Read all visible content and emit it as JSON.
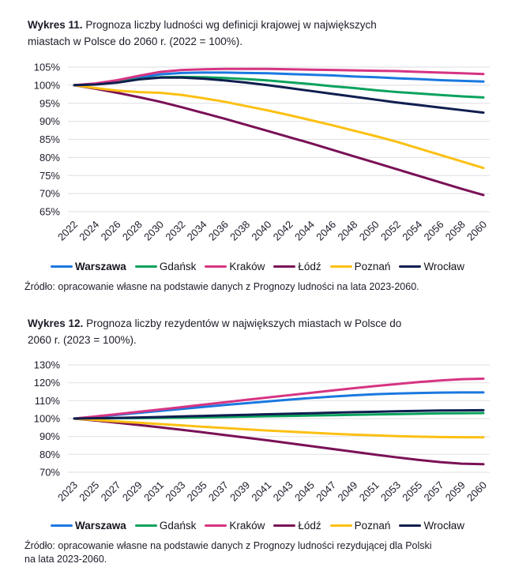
{
  "theme": {
    "background": "#ffffff",
    "text": "#1c1c2b",
    "grid": "#e4e4e7",
    "title_color": "#1b1b28"
  },
  "figures": [
    {
      "title_label": "Wykres 11.",
      "title_text": " Prognoza liczby ludności wg definicji krajowej w największych\nmiastach w Polsce do 2060 r. (2022 = 100%).",
      "source": "Źródło: opracowanie własne na podstawie danych z Prognozy ludności na lata 2023-2060."
    },
    {
      "title_label": "Wykres 12.",
      "title_text": " Prognoza liczby rezydentów w największych miastach w Polsce do\n2060 r. (2023 = 100%).",
      "source": "Źródło: opracowanie własne na podstawie danych z Prognozy ludności rezydującej dla Polski\nna lata 2023-2060."
    }
  ],
  "chart_data": [
    {
      "type": "line",
      "title": "Wykres 11. Prognoza liczby ludności wg definicji krajowej w największych miastach w Polsce do 2060 r. (2022 = 100%).",
      "xlabel": "",
      "ylabel": "",
      "x": [
        2022,
        2024,
        2026,
        2028,
        2030,
        2032,
        2034,
        2036,
        2038,
        2040,
        2042,
        2044,
        2046,
        2048,
        2050,
        2052,
        2054,
        2056,
        2058,
        2060
      ],
      "ylim": [
        65,
        105
      ],
      "yticks": [
        105,
        100,
        95,
        90,
        85,
        80,
        75,
        70,
        65
      ],
      "ytick_suffix": "%",
      "grid": "horizontal",
      "legend_position": "bottom",
      "series": [
        {
          "name": "Warszawa",
          "color": "#1a78e0",
          "emphasis": true,
          "values": [
            100,
            100.4,
            101.1,
            102.1,
            103,
            103.4,
            103.5,
            103.5,
            103.4,
            103.3,
            103.1,
            102.9,
            102.7,
            102.4,
            102.2,
            101.9,
            101.7,
            101.4,
            101.2,
            101
          ]
        },
        {
          "name": "Gdańsk",
          "color": "#0aa25d",
          "values": [
            100,
            100.3,
            100.9,
            101.7,
            102.2,
            102.3,
            102.2,
            102,
            101.7,
            101.3,
            100.8,
            100.3,
            99.7,
            99.2,
            98.6,
            98.1,
            97.7,
            97.3,
            96.9,
            96.6
          ]
        },
        {
          "name": "Kraków",
          "color": "#d63483",
          "values": [
            100,
            100.5,
            101.4,
            102.6,
            103.7,
            104.2,
            104.4,
            104.5,
            104.5,
            104.5,
            104.4,
            104.3,
            104.2,
            104.1,
            104,
            103.9,
            103.7,
            103.5,
            103.3,
            103.1
          ]
        },
        {
          "name": "Łódź",
          "color": "#7a1156",
          "values": [
            100,
            99,
            97.9,
            96.7,
            95.4,
            93.9,
            92.3,
            90.7,
            89,
            87.3,
            85.6,
            83.9,
            82.1,
            80.3,
            78.5,
            76.7,
            74.9,
            73.1,
            71.3,
            69.6
          ]
        },
        {
          "name": "Poznań",
          "color": "#fcc013",
          "values": [
            100,
            99.2,
            98.5,
            98.1,
            97.9,
            97.3,
            96.4,
            95.4,
            94.2,
            93,
            91.7,
            90.3,
            88.9,
            87.4,
            85.9,
            84.3,
            82.5,
            80.7,
            78.9,
            77.1
          ]
        },
        {
          "name": "Wrocław",
          "color": "#0f1e4f",
          "values": [
            100,
            100.2,
            100.7,
            101.6,
            102.1,
            102.1,
            101.8,
            101.3,
            100.7,
            100,
            99.2,
            98.4,
            97.6,
            96.8,
            96,
            95.2,
            94.5,
            93.8,
            93.1,
            92.4
          ]
        }
      ]
    },
    {
      "type": "line",
      "title": "Wykres 12. Prognoza liczby rezydentów w największych miastach w Polsce do 2060 r. (2023 = 100%).",
      "xlabel": "",
      "ylabel": "",
      "x": [
        2023,
        2025,
        2027,
        2029,
        2031,
        2033,
        2035,
        2037,
        2039,
        2041,
        2043,
        2045,
        2047,
        2049,
        2051,
        2053,
        2055,
        2057,
        2059,
        2060
      ],
      "ylim": [
        70,
        130
      ],
      "yticks": [
        130,
        120,
        110,
        100,
        90,
        80,
        70
      ],
      "ytick_suffix": "%",
      "grid": "horizontal",
      "legend_position": "bottom",
      "series": [
        {
          "name": "Warszawa",
          "color": "#1a78e0",
          "emphasis": true,
          "values": [
            100,
            101,
            102.1,
            103.2,
            104.3,
            105.4,
            106.5,
            107.6,
            108.6,
            109.6,
            110.6,
            111.5,
            112.3,
            113,
            113.6,
            114,
            114.3,
            114.5,
            114.6,
            114.6
          ]
        },
        {
          "name": "Gdańsk",
          "color": "#0aa25d",
          "values": [
            100,
            100.1,
            100.2,
            100.3,
            100.4,
            100.5,
            100.7,
            100.9,
            101.1,
            101.3,
            101.5,
            101.7,
            101.9,
            102.1,
            102.3,
            102.5,
            102.7,
            102.9,
            103,
            103.1
          ]
        },
        {
          "name": "Kraków",
          "color": "#d63483",
          "values": [
            100,
            101.2,
            102.5,
            103.8,
            105.1,
            106.4,
            107.8,
            109.1,
            110.5,
            111.8,
            113.1,
            114.4,
            115.7,
            117,
            118.2,
            119.3,
            120.4,
            121.3,
            122,
            122.3
          ]
        },
        {
          "name": "Łódź",
          "color": "#7a1156",
          "values": [
            100,
            98.9,
            97.7,
            96.4,
            95.1,
            93.7,
            92.3,
            90.8,
            89.3,
            87.8,
            86.2,
            84.6,
            83,
            81.4,
            79.8,
            78.3,
            76.9,
            75.7,
            74.8,
            74.5
          ]
        },
        {
          "name": "Poznań",
          "color": "#fcc013",
          "values": [
            100,
            99.2,
            98.4,
            97.7,
            96.9,
            96.2,
            95.4,
            94.7,
            94,
            93.3,
            92.7,
            92.1,
            91.5,
            91,
            90.6,
            90.2,
            89.9,
            89.7,
            89.6,
            89.5
          ]
        },
        {
          "name": "Wrocław",
          "color": "#0f1e4f",
          "values": [
            100,
            100.2,
            100.4,
            100.6,
            100.9,
            101.2,
            101.5,
            101.8,
            102.1,
            102.4,
            102.7,
            103,
            103.3,
            103.6,
            103.8,
            104.1,
            104.3,
            104.5,
            104.6,
            104.7
          ]
        }
      ]
    }
  ]
}
